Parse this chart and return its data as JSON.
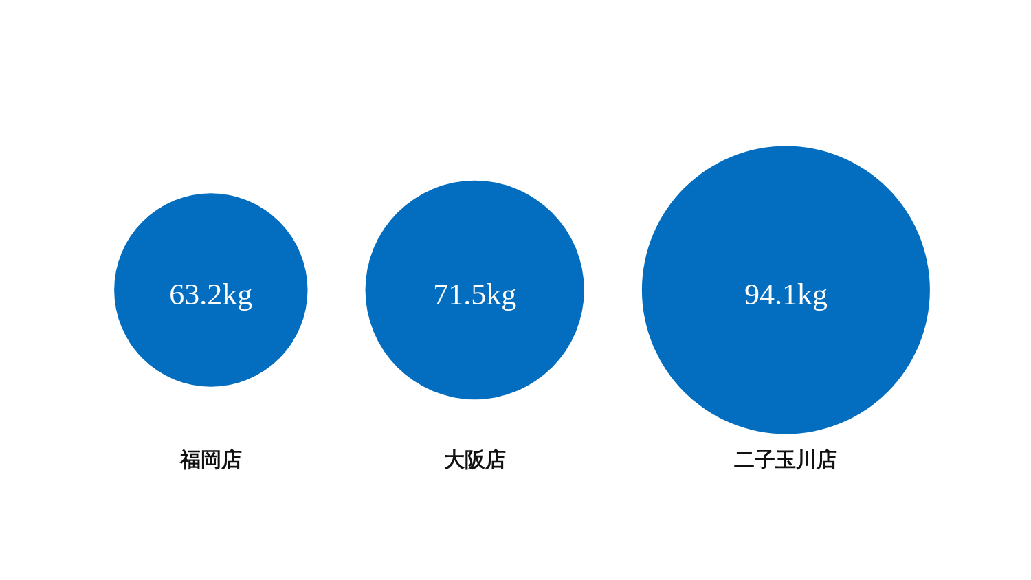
{
  "chart_data": {
    "type": "other",
    "categories": [
      "福岡店",
      "大阪店",
      "二子玉川店"
    ],
    "values": [
      63.2,
      71.5,
      94.1
    ],
    "value_labels": [
      "63.2kg",
      "71.5kg",
      "94.1kg"
    ],
    "color": "#036ebf"
  }
}
